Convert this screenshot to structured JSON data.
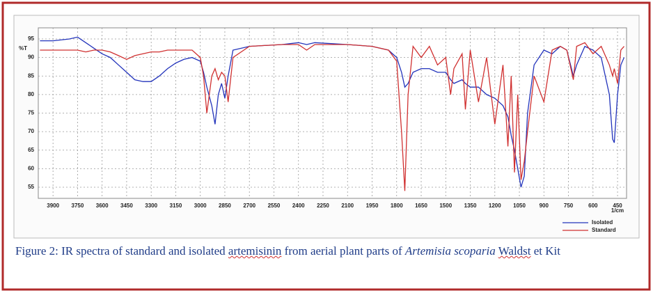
{
  "chart_data": {
    "type": "line",
    "y_label": "%T",
    "x_label": "1/cm",
    "x": [
      3980,
      3900,
      3800,
      3750,
      3700,
      3650,
      3600,
      3550,
      3500,
      3450,
      3400,
      3350,
      3300,
      3250,
      3200,
      3150,
      3100,
      3050,
      3000,
      2980,
      2960,
      2930,
      2910,
      2890,
      2870,
      2850,
      2830,
      2800,
      2700,
      2500,
      2400,
      2350,
      2300,
      2100,
      1950,
      1850,
      1800,
      1770,
      1750,
      1730,
      1700,
      1650,
      1600,
      1550,
      1500,
      1470,
      1450,
      1400,
      1380,
      1350,
      1300,
      1250,
      1200,
      1150,
      1120,
      1100,
      1080,
      1060,
      1040,
      1020,
      1000,
      960,
      900,
      850,
      800,
      760,
      720,
      700,
      650,
      600,
      550,
      500,
      480,
      470,
      450,
      430,
      410
    ],
    "series": [
      {
        "name": "Isolated",
        "color": "#2233bb",
        "values": [
          94.5,
          94.5,
          95,
          95.5,
          94,
          92.5,
          91,
          90,
          88,
          86,
          84,
          83.5,
          83.5,
          85,
          87,
          88.5,
          89.5,
          90,
          89,
          86,
          82,
          77,
          72,
          80,
          83,
          79,
          85,
          92,
          93,
          93.5,
          94,
          93.5,
          94,
          93.5,
          93,
          92,
          90,
          86,
          82,
          83,
          86,
          87,
          87,
          86,
          86,
          84,
          83,
          84,
          83,
          82,
          82,
          80,
          79,
          77,
          74,
          69,
          65,
          60,
          55,
          58,
          75,
          88,
          92,
          91,
          93,
          92,
          85,
          88,
          93,
          92,
          90,
          80,
          68,
          67,
          80,
          88,
          90
        ]
      },
      {
        "name": "Standard",
        "color": "#d03030",
        "values": [
          92,
          92,
          92,
          92,
          91.5,
          92,
          92,
          91.5,
          90.5,
          89.5,
          90.5,
          91,
          91.5,
          91.5,
          92,
          92,
          92,
          92,
          90,
          85,
          75,
          85,
          87,
          84,
          86,
          85,
          78,
          90,
          93,
          93.5,
          93.5,
          92,
          93.5,
          93.5,
          93,
          92,
          89,
          70,
          54,
          80,
          93,
          90,
          93,
          88,
          90,
          80,
          87,
          91,
          76,
          92,
          78,
          90,
          72,
          88,
          66,
          85,
          59,
          80,
          57,
          62,
          70,
          85,
          78,
          92,
          93,
          92,
          84,
          93,
          94,
          91,
          93,
          88,
          85,
          87,
          83,
          92,
          93
        ]
      }
    ],
    "xlim": [
      3990,
      395
    ],
    "ylim": [
      52,
      98
    ],
    "xticks": [
      3900,
      3750,
      3600,
      3450,
      3300,
      3150,
      3000,
      2850,
      2700,
      2550,
      2400,
      2250,
      2100,
      1950,
      1800,
      1650,
      1500,
      1350,
      1200,
      1050,
      900,
      750,
      600,
      450
    ],
    "yticks": [
      55,
      60,
      65,
      70,
      75,
      80,
      85,
      90,
      95
    ],
    "grid": true
  },
  "caption": [
    "Figure 2: IR spectra of standard and isolated ",
    "artemisinin",
    " from aerial plant parts of ",
    "Artemisia scoparia",
    " ",
    "Waldst",
    " et Kit"
  ]
}
